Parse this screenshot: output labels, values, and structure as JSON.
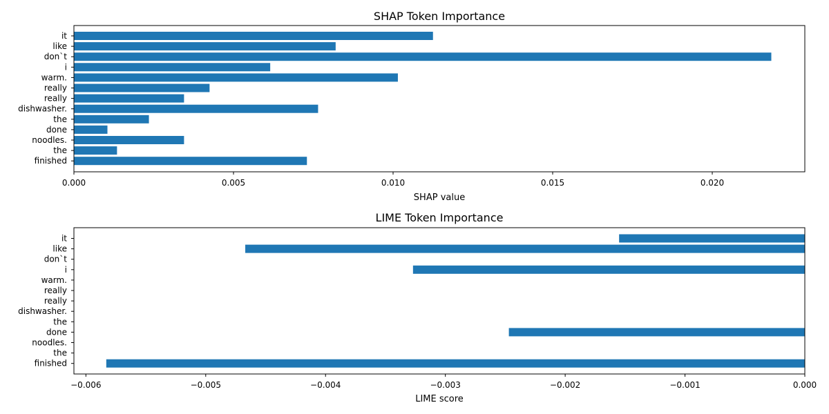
{
  "chart_data": [
    {
      "type": "bar",
      "orientation": "horizontal",
      "title": "SHAP Token Importance",
      "xlabel": "SHAP value",
      "ylabel": "",
      "categories": [
        "it",
        "like",
        "don`t",
        "i",
        "warm.",
        "really",
        "really",
        "dishwasher.",
        "the",
        "done",
        "noodles.",
        "the",
        "finished"
      ],
      "values": [
        0.01125,
        0.0082,
        0.02185,
        0.00615,
        0.01015,
        0.00425,
        0.00345,
        0.00765,
        0.00235,
        0.00105,
        0.00345,
        0.00135,
        0.0073
      ],
      "xlim": [
        0,
        0.0229
      ],
      "xticks": [
        0,
        0.005,
        0.01,
        0.015,
        0.02
      ],
      "xtick_labels": [
        "0.000",
        "0.005",
        "0.010",
        "0.015",
        "0.020"
      ],
      "grid": false,
      "bar_color": "#1f77b4"
    },
    {
      "type": "bar",
      "orientation": "horizontal",
      "title": "LIME Token Importance",
      "xlabel": "LIME score",
      "ylabel": "",
      "categories": [
        "it",
        "like",
        "don`t",
        "i",
        "warm.",
        "really",
        "really",
        "dishwasher.",
        "the",
        "done",
        "noodles.",
        "the",
        "finished"
      ],
      "values": [
        -0.00155,
        -0.00467,
        0,
        -0.00327,
        0,
        0,
        0,
        0,
        0,
        -0.00247,
        0,
        0,
        -0.00583
      ],
      "xlim": [
        -0.0061,
        0
      ],
      "xticks": [
        -0.006,
        -0.005,
        -0.004,
        -0.003,
        -0.002,
        -0.001,
        0
      ],
      "xtick_labels": [
        "−0.006",
        "−0.005",
        "−0.004",
        "−0.003",
        "−0.002",
        "−0.001",
        "0.000"
      ],
      "grid": false,
      "bar_color": "#1f77b4"
    }
  ]
}
